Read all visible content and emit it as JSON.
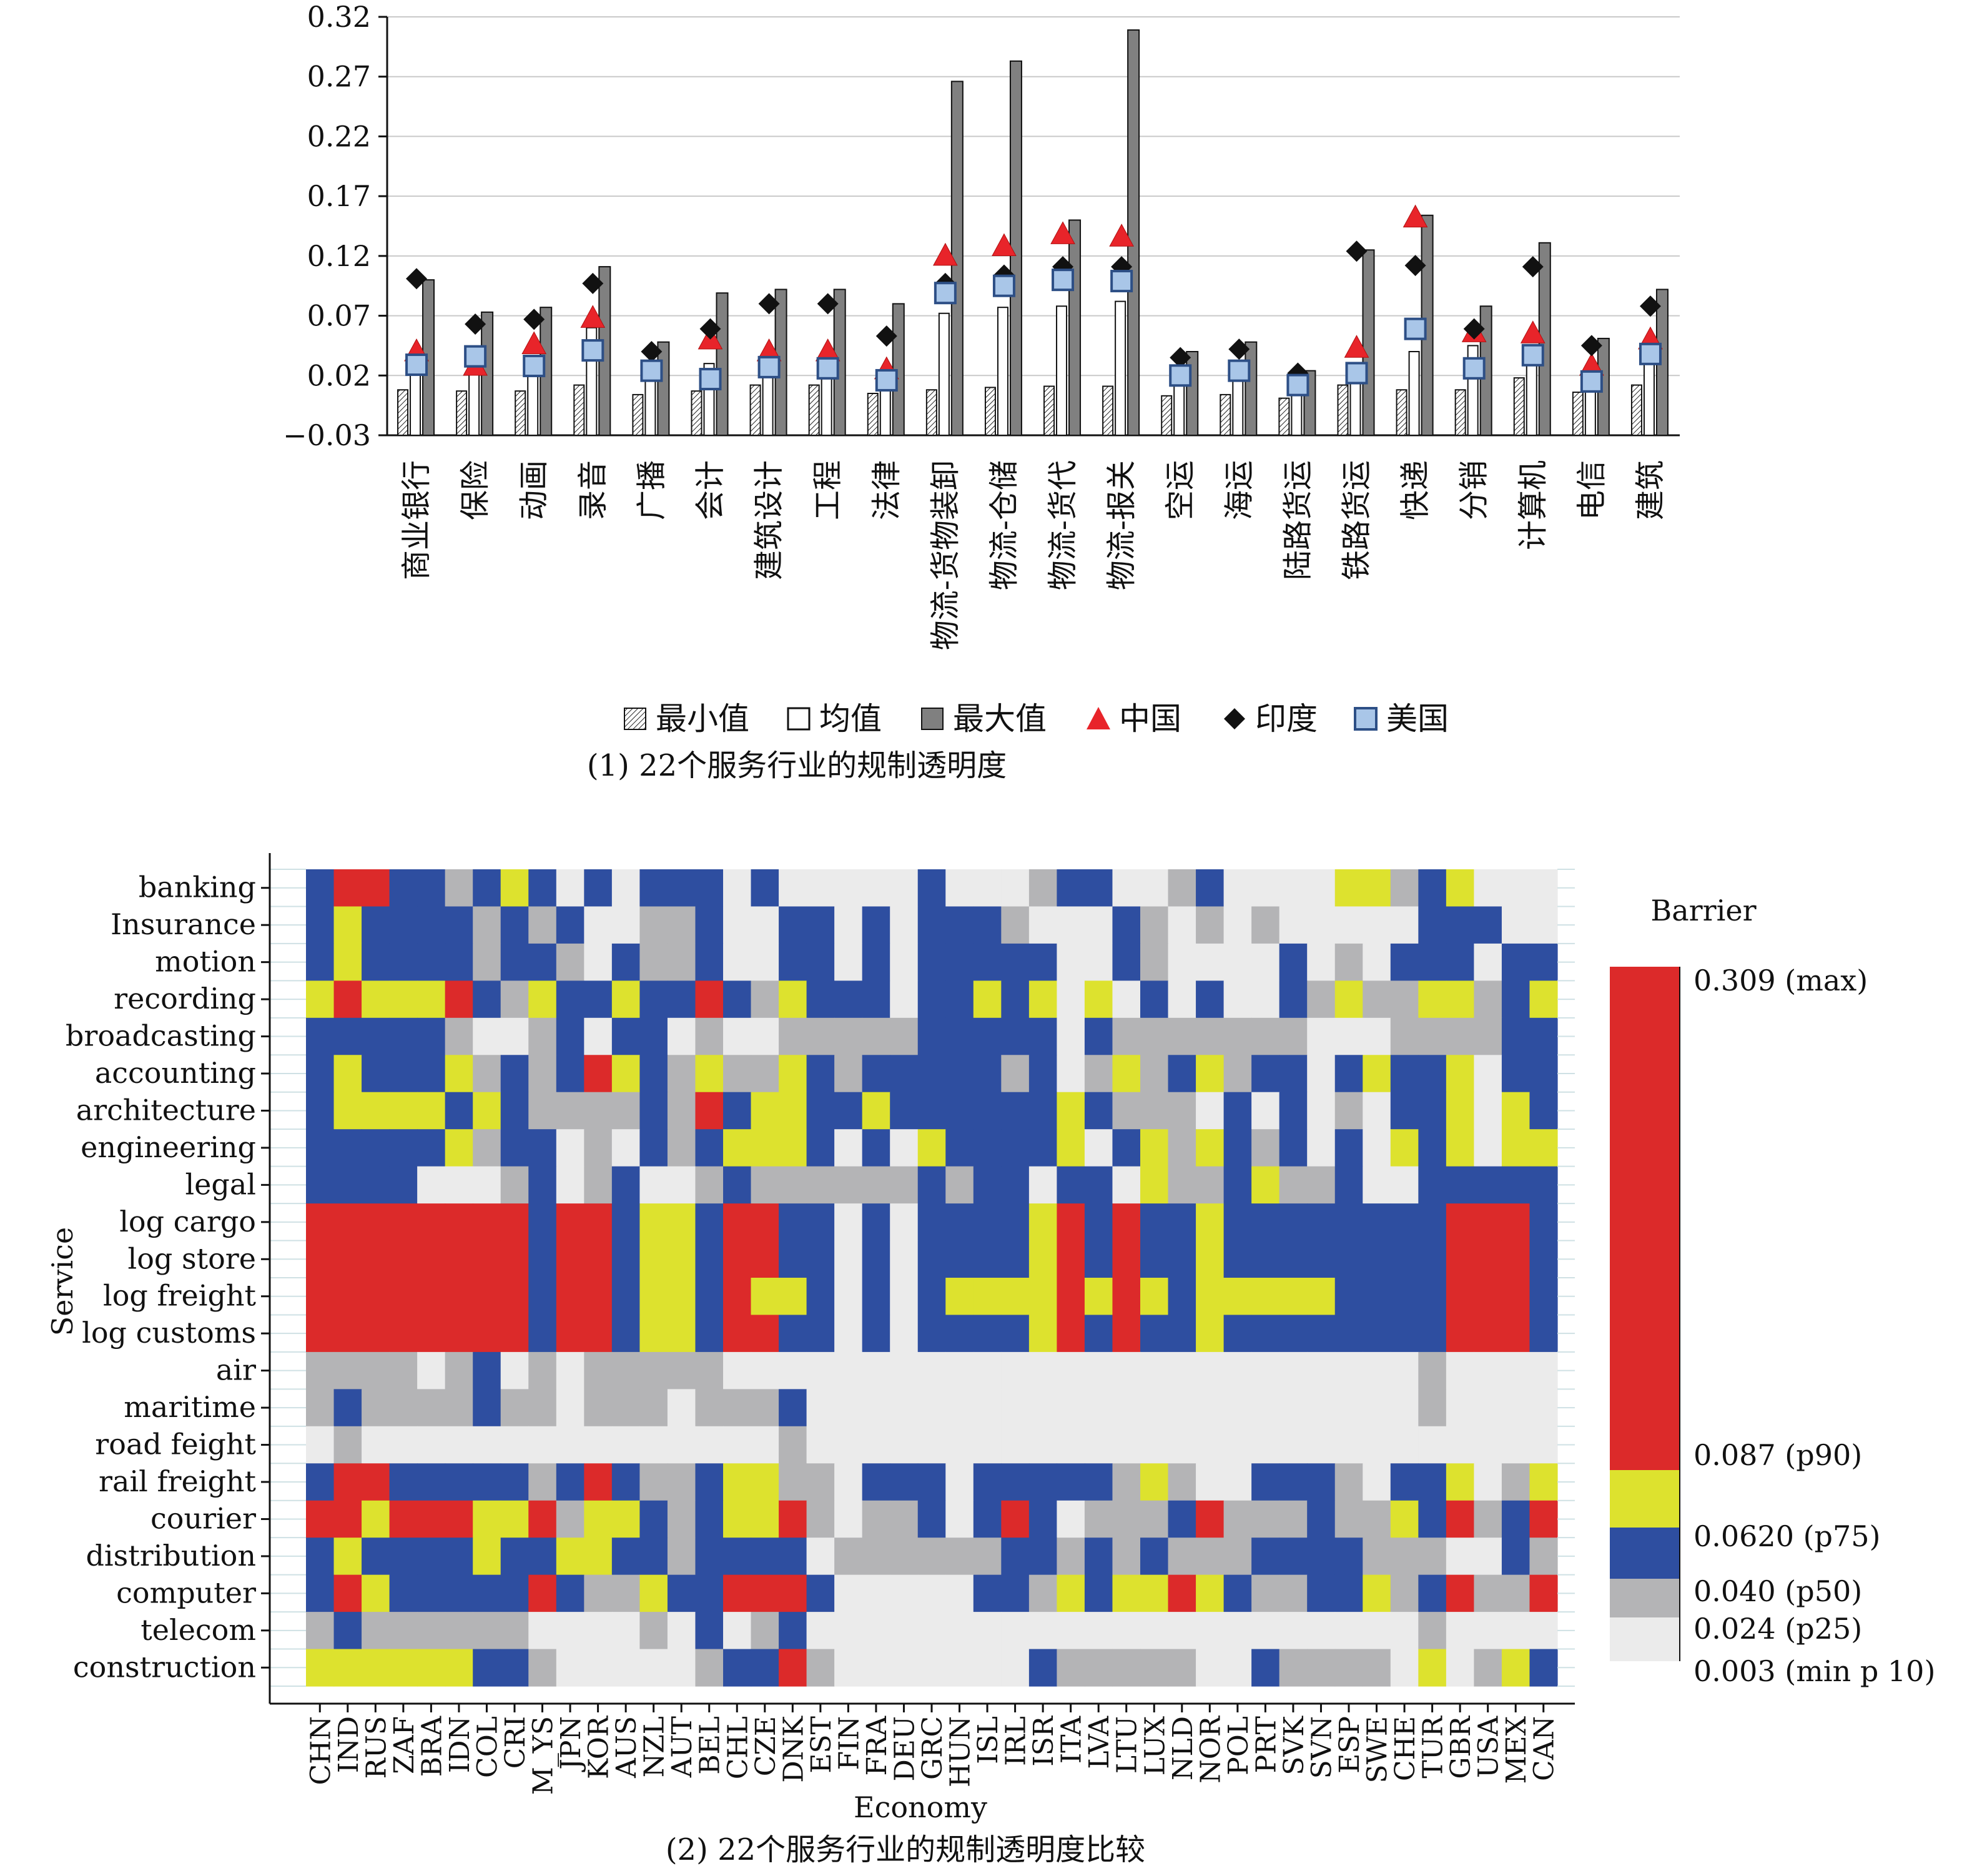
{
  "chart_data": [
    {
      "type": "bar",
      "title": "(1) 22个服务行业的规制透明度",
      "xlabel": "",
      "ylabel": "",
      "ylim": [
        -0.03,
        0.32
      ],
      "yticks": [
        "0.32",
        "0.27",
        "0.22",
        "0.17",
        "0.12",
        "0.07",
        "0.02",
        "−0.03"
      ],
      "ytick_values": [
        0.32,
        0.27,
        0.22,
        0.17,
        0.12,
        0.07,
        0.02,
        -0.03
      ],
      "categories": [
        "商业银行",
        "保险",
        "动画",
        "录音",
        "广播",
        "会计",
        "建筑设计",
        "工程",
        "法律",
        "物流-货物装卸",
        "物流-仓储",
        "物流-货代",
        "物流-报关",
        "空运",
        "海运",
        "陆路货运",
        "铁路货运",
        "快递",
        "分销",
        "计算机",
        "电信",
        "建筑"
      ],
      "series": [
        {
          "name": "最小值",
          "marker": "hatched-bar",
          "color": "#ffffff",
          "values": [
            0.008,
            0.007,
            0.007,
            0.012,
            0.004,
            0.007,
            0.012,
            0.012,
            0.005,
            0.008,
            0.01,
            0.011,
            0.011,
            0.003,
            0.004,
            0.001,
            0.012,
            0.008,
            0.008,
            0.018,
            0.006,
            0.012
          ]
        },
        {
          "name": "均值",
          "marker": "open-bar",
          "color": "#ffffff",
          "values": [
            0.03,
            0.03,
            0.022,
            0.06,
            0.016,
            0.03,
            0.03,
            0.03,
            0.018,
            0.072,
            0.077,
            0.078,
            0.082,
            0.012,
            0.02,
            0.01,
            0.03,
            0.04,
            0.045,
            0.04,
            0.015,
            0.035
          ]
        },
        {
          "name": "最大值",
          "marker": "filled-bar",
          "color": "#808080",
          "values": [
            0.1,
            0.073,
            0.077,
            0.111,
            0.048,
            0.089,
            0.092,
            0.092,
            0.08,
            0.266,
            0.283,
            0.15,
            0.309,
            0.04,
            0.048,
            0.024,
            0.125,
            0.154,
            0.078,
            0.131,
            0.051,
            0.092
          ]
        },
        {
          "name": "中国",
          "marker": "triangle",
          "color": "#e8242a",
          "values": [
            0.04,
            0.028,
            0.046,
            0.068,
            null,
            0.05,
            0.04,
            0.04,
            0.025,
            0.12,
            0.128,
            0.138,
            0.136,
            null,
            null,
            null,
            0.043,
            0.152,
            0.056,
            0.055,
            0.028,
            0.05
          ]
        },
        {
          "name": "印度",
          "marker": "diamond",
          "color": "#111111",
          "values": [
            0.101,
            0.063,
            0.067,
            0.097,
            0.04,
            0.059,
            0.08,
            0.08,
            0.053,
            0.097,
            0.104,
            0.111,
            0.111,
            0.035,
            0.042,
            0.022,
            0.124,
            0.112,
            0.059,
            0.111,
            0.045,
            0.078
          ]
        },
        {
          "name": "美国",
          "marker": "square",
          "color": "#a9c6e8",
          "values": [
            0.029,
            0.036,
            0.028,
            0.041,
            0.024,
            0.017,
            0.027,
            0.026,
            0.016,
            0.089,
            0.095,
            0.1,
            0.099,
            0.02,
            0.024,
            0.012,
            0.022,
            0.059,
            0.026,
            0.037,
            0.015,
            0.038
          ]
        }
      ]
    },
    {
      "type": "heatmap",
      "title": "(2) 22个服务行业的规制透明度比较",
      "xlabel": "Economy",
      "ylabel": "Service",
      "x": [
        "CHN",
        "IND",
        "RUS",
        "ZAF",
        "BRA",
        "IDN",
        "COL",
        "CRI",
        "M_YS",
        "JPN",
        "KOR",
        "AUS",
        "NZL",
        "AUT",
        "BEL",
        "CHL",
        "CZE",
        "DNK",
        "EST",
        "FIN",
        "FRA",
        "DEU",
        "GRC",
        "HUN",
        "ISL",
        "IRL",
        "ISR",
        "ITA",
        "LVA",
        "LTU",
        "LUX",
        "NLD",
        "NOR",
        "POL",
        "PRT",
        "SVK",
        "SVN",
        "ESP",
        "SWE",
        "CHE",
        "TUR",
        "GBR",
        "USA",
        "MEX",
        "CAN"
      ],
      "y": [
        "banking",
        "Insurance",
        "motion",
        "recording",
        "broadcasting",
        "accounting",
        "architecture",
        "engineering",
        "legal",
        "log cargo",
        "log store",
        "log freight",
        "log customs",
        "air",
        "maritime",
        "road feight",
        "rail freight",
        "courier",
        "distribution",
        "computer",
        "telecom",
        "construction"
      ],
      "legend_title": "Barrier",
      "legend_position": "right",
      "bins": [
        {
          "label": "0.003 (min p 10)",
          "value": 0.003,
          "color": "#ebebeb"
        },
        {
          "label": "0.024 (p25)",
          "value": 0.024,
          "color": "#b4b4b6"
        },
        {
          "label": "0.040 (p50)",
          "value": 0.04,
          "color": "#2e4ea0"
        },
        {
          "label": "0.0620 (p75)",
          "value": 0.062,
          "color": "#dde22e"
        },
        {
          "label": "0.087 (p90)",
          "value": 0.087,
          "color": "#dc2a2a"
        },
        {
          "label": "0.309 (max)",
          "value": 0.309,
          "color": "#dc2a2a"
        }
      ],
      "level_key": "0 = below p25, 1 = p25–p50, 2 = p50–p75, 3 = p75–p90, 4 = above p90",
      "levels": [
        "244221232020222020000020001220012000033123000",
        "232222121200112002202022210002101010000022200",
        "232222122102112002202022222002100002010222022",
        "343334213223224213222022323030202002131133123",
        "222221001202201001111122222021111111000111122",
        "232223121243213113212222212013123122023223022",
        "233332321111214233223222222321110202010223032",
        "222223122010212333202032222302313212020323033",
        "222200012012001211111121220220311231120022222",
        "444444442442332442202022223424223222222224442",
        "444444442442332442202022223424223222222224442",
        "444444442442332433202023333434323333322224442",
        "444444442442332442202022223424223222222224442",
        "111101201011111000000000000000000000000010000",
        "121111211011101112000000000000000000000010000",
        "010000000000000001000000000000000000000000000",
        "244222221242112331102220222221310022210223013",
        "443444334133212334101120242011124111211324124",
        "232222322332212222011111122121211122221110021",
        "243222224211322444200000221323343211223124114",
        "121111110000102012000000000000000000000010000",
        "333333221000001224100000002111110021111030132"
      ]
    }
  ]
}
